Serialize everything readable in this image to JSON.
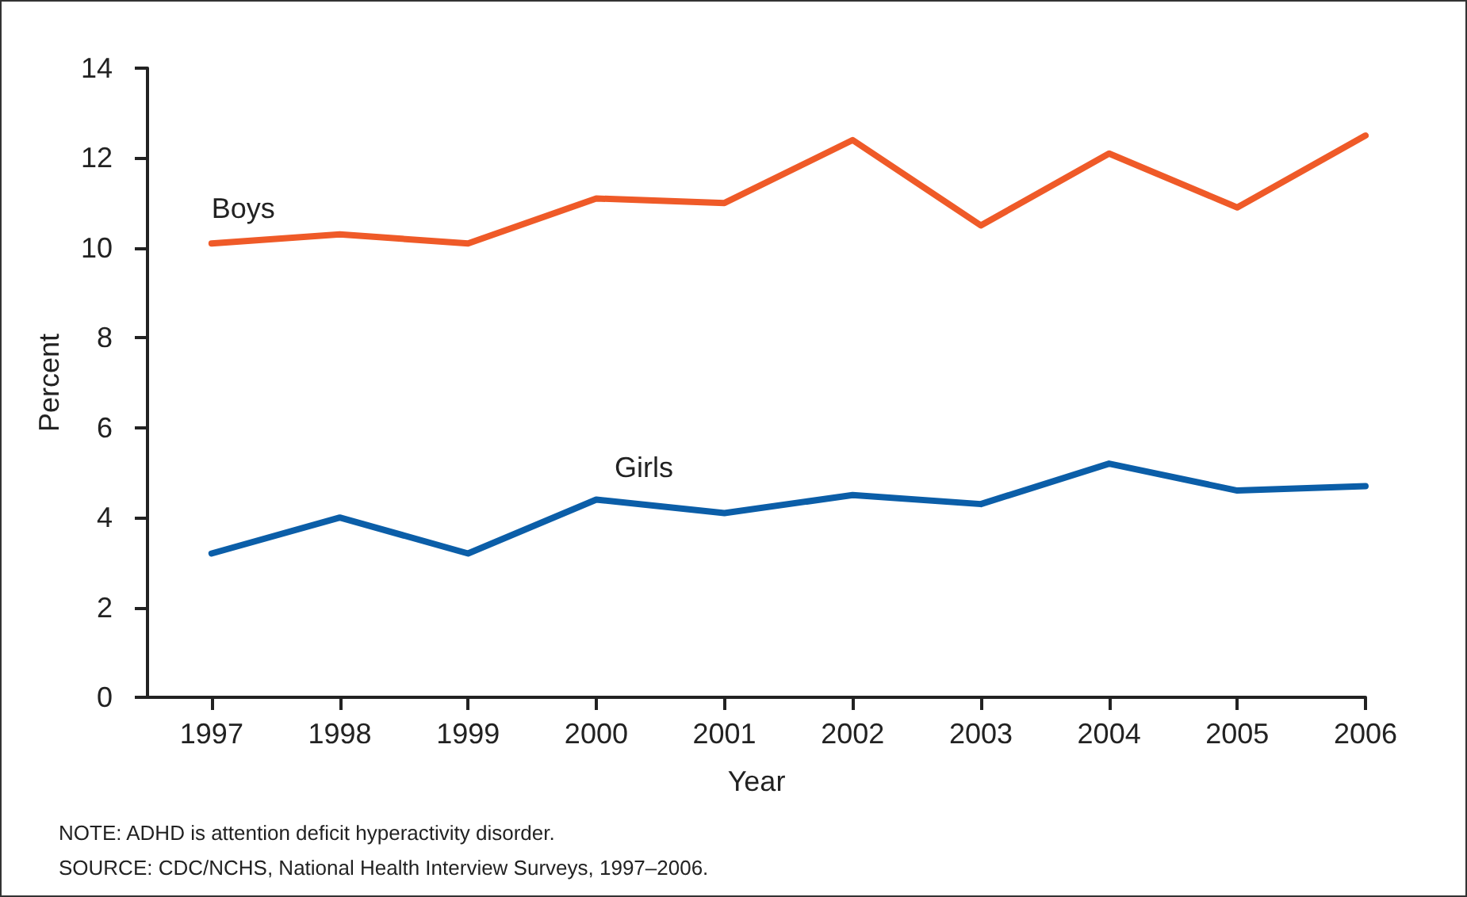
{
  "chart_data": {
    "type": "line",
    "xlabel": "Year",
    "ylabel": "Percent",
    "x": [
      1997,
      1998,
      1999,
      2000,
      2001,
      2002,
      2003,
      2004,
      2005,
      2006
    ],
    "xlim": [
      1996.5,
      2006
    ],
    "xticks": [
      1997,
      1998,
      1999,
      2000,
      2001,
      2002,
      2003,
      2004,
      2005,
      2006
    ],
    "ylim": [
      0,
      14
    ],
    "yticks": [
      0,
      2,
      4,
      6,
      8,
      10,
      12,
      14
    ],
    "series": [
      {
        "name": "Boys",
        "color": "#ef5a28",
        "values": [
          10.1,
          10.3,
          10.1,
          11.1,
          11.0,
          12.4,
          10.5,
          12.1,
          10.9,
          12.5
        ]
      },
      {
        "name": "Girls",
        "color": "#0b5ea8",
        "values": [
          3.2,
          4.0,
          3.2,
          4.4,
          4.1,
          4.5,
          4.3,
          5.2,
          4.6,
          4.7
        ]
      }
    ],
    "grid": false,
    "legend": false,
    "marker": "none",
    "line_style": "solid",
    "annotations": [
      "NOTE: ADHD is attention deficit hyperactivity disorder.",
      "SOURCE: CDC/NCHS, National Health Interview Surveys, 1997–2006."
    ]
  }
}
